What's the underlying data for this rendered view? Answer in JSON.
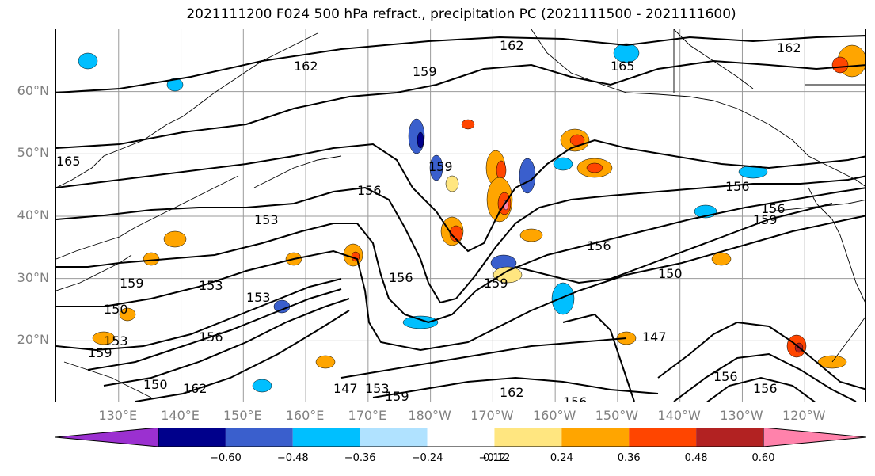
{
  "title": "2021111200 F024 500 hPa refract., precipitation PC (2021111500 - 2021111600)",
  "lat_labels": [
    "60°N",
    "50°N",
    "40°N",
    "30°N",
    "20°N"
  ],
  "lon_labels": [
    "130°E",
    "140°E",
    "150°E",
    "160°E",
    "170°E",
    "180°W",
    "170°W",
    "160°W",
    "150°W",
    "140°W",
    "130°W",
    "120°W"
  ],
  "contour_labels": [
    "162",
    "159",
    "162",
    "165",
    "162",
    "165",
    "159",
    "156",
    "153",
    "156",
    "156",
    "159",
    "156",
    "156",
    "159",
    "153",
    "150",
    "159",
    "150",
    "153",
    "153",
    "156",
    "159",
    "147",
    "153",
    "147",
    "156",
    "156",
    "150",
    "159",
    "162",
    "156",
    "162",
    "156",
    "156"
  ],
  "colorbar": {
    "ticks": [
      "−0.60",
      "−0.48",
      "−0.36",
      "−0.24",
      "−0.12",
      "0.12",
      "0.24",
      "0.36",
      "0.48",
      "0.60"
    ],
    "colors": [
      "#9b30d0",
      "#00008b",
      "#3a5fcd",
      "#00bfff",
      "#b0e2ff",
      "#ffffff",
      "#ffe680",
      "#ffa500",
      "#ff4500",
      "#b22222",
      "#ff82ab"
    ]
  },
  "chart_data": {
    "type": "heatmap",
    "title": "2021111200 F024 500 hPa refract., precipitation PC (2021111500 - 2021111600)",
    "x_ticks": [
      "130°E",
      "140°E",
      "150°E",
      "160°E",
      "170°E",
      "180°W",
      "170°W",
      "160°W",
      "150°W",
      "140°W",
      "130°W",
      "120°W"
    ],
    "y_ticks": [
      "20°N",
      "30°N",
      "40°N",
      "50°N",
      "60°N"
    ],
    "lon_range": [
      120,
      250
    ],
    "lat_range": [
      10,
      70
    ],
    "grid": true,
    "color_levels": [
      -0.6,
      -0.48,
      -0.36,
      -0.24,
      -0.12,
      0.12,
      0.24,
      0.36,
      0.48,
      0.6
    ],
    "contour_levels": [
      147,
      150,
      153,
      156,
      159,
      162,
      165
    ]
  }
}
